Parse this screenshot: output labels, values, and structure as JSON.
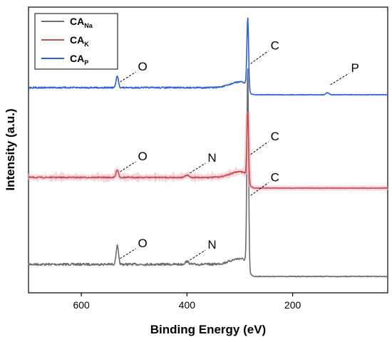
{
  "chart_data": {
    "type": "line",
    "title": "",
    "xlabel": "Binding Energy (eV)",
    "ylabel": "Intensity (a.u.)",
    "xlim": [
      700,
      20
    ],
    "x_reversed": true,
    "y_ticks_shown": false,
    "grid": false,
    "legend_position": "top-left",
    "xticks": [
      600,
      400,
      200
    ],
    "series": [
      {
        "name": "CA",
        "subscript": "Na",
        "color": "#6d6d6d",
        "peaks": [
          {
            "x": 532,
            "label": "O"
          },
          {
            "x": 400,
            "label": "N"
          },
          {
            "x": 285,
            "label": "C"
          }
        ]
      },
      {
        "name": "CA",
        "subscript": "K",
        "color": "#c0504d",
        "peaks": [
          {
            "x": 532,
            "label": "O"
          },
          {
            "x": 400,
            "label": "N"
          },
          {
            "x": 285,
            "label": "C"
          }
        ]
      },
      {
        "name": "CA",
        "subscript": "P",
        "color": "#2e5fcc",
        "peaks": [
          {
            "x": 532,
            "label": "O"
          },
          {
            "x": 285,
            "label": "C"
          },
          {
            "x": 134,
            "label": "P"
          }
        ]
      }
    ]
  }
}
